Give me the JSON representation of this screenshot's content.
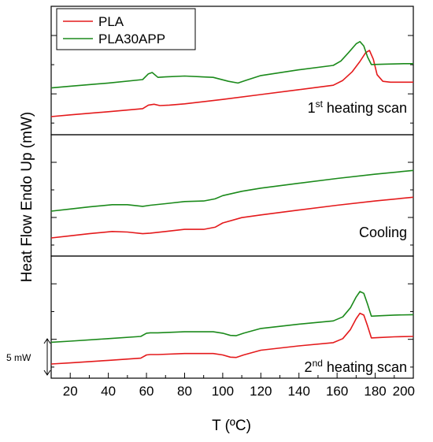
{
  "chart_data": {
    "type": "line",
    "xlabel": "T (ºC)",
    "ylabel": "Heat Flow Endo Up (mW)",
    "xlim": [
      10,
      200
    ],
    "xticks": [
      20,
      40,
      60,
      80,
      100,
      120,
      140,
      160,
      180,
      200
    ],
    "legend": {
      "position": "top-left",
      "entries": [
        {
          "name": "PLA",
          "color": "#e41a1c"
        },
        {
          "name": "PLA30APP",
          "color": "#1b8a1b"
        }
      ]
    },
    "scale_bar": "5 mW",
    "panels": [
      {
        "label": "1",
        "label_sup": "st",
        "label_rest": " heating scan",
        "series": [
          {
            "name": "PLA",
            "color": "#e41a1c",
            "x": [
              10,
              20,
              40,
              58,
              61,
              64,
              67,
              72,
              80,
              100,
              120,
              140,
              158,
              163,
              168,
              172,
              175,
              177,
              179,
              181,
              184,
              188,
              195,
              200
            ],
            "y": [
              0.0,
              0.4,
              1.1,
              1.8,
              2.6,
              2.8,
              2.5,
              2.6,
              2.9,
              3.9,
              5.0,
              6.1,
              7.1,
              8.2,
              10.2,
              12.5,
              14.5,
              15.0,
              13.0,
              9.5,
              8.0,
              7.8,
              7.8,
              7.8
            ]
          },
          {
            "name": "PLA30APP",
            "color": "#1b8a1b",
            "x": [
              10,
              20,
              40,
              58,
              61,
              63,
              66,
              70,
              80,
              95,
              103,
              108,
              112,
              120,
              140,
              158,
              162,
              166,
              170,
              172,
              174,
              176,
              178,
              185,
              195,
              200
            ],
            "y": [
              6.5,
              6.9,
              7.6,
              8.4,
              9.7,
              10.0,
              8.9,
              9.0,
              9.2,
              8.9,
              8.0,
              7.6,
              8.2,
              9.3,
              10.6,
              11.6,
              12.6,
              14.5,
              16.5,
              17.0,
              16.0,
              13.5,
              11.8,
              11.9,
              12.0,
              12.0
            ]
          }
        ]
      },
      {
        "label": "Cooling",
        "label_sup": "",
        "label_rest": "",
        "series": [
          {
            "name": "PLA",
            "color": "#e41a1c",
            "x": [
              10,
              20,
              30,
              42,
              50,
              58,
              62,
              70,
              80,
              90,
              96,
              100,
              110,
              120,
              140,
              160,
              180,
              200
            ],
            "y": [
              0.0,
              0.4,
              0.8,
              1.2,
              1.1,
              0.8,
              0.9,
              1.2,
              1.6,
              1.6,
              2.0,
              2.8,
              3.8,
              4.3,
              5.2,
              6.1,
              6.9,
              7.6
            ]
          },
          {
            "name": "PLA30APP",
            "color": "#1b8a1b",
            "x": [
              10,
              20,
              30,
              42,
              50,
              58,
              62,
              70,
              80,
              90,
              96,
              100,
              110,
              120,
              140,
              160,
              180,
              200
            ],
            "y": [
              5.0,
              5.4,
              5.8,
              6.2,
              6.2,
              5.9,
              6.1,
              6.4,
              6.8,
              6.9,
              7.3,
              7.9,
              8.7,
              9.3,
              10.2,
              11.1,
              11.9,
              12.6
            ]
          }
        ]
      },
      {
        "label": "2",
        "label_sup": "nd",
        "label_rest": " heating scan",
        "series": [
          {
            "name": "PLA",
            "color": "#e41a1c",
            "x": [
              10,
              20,
              40,
              57,
              60,
              62,
              66,
              80,
              95,
              100,
              104,
              107,
              111,
              120,
              140,
              158,
              163,
              167,
              170,
              172,
              174,
              176,
              178,
              182,
              190,
              200
            ],
            "y": [
              0.0,
              0.3,
              1.0,
              1.6,
              2.5,
              2.6,
              2.6,
              2.9,
              2.9,
              2.5,
              1.9,
              1.8,
              2.5,
              3.8,
              5.0,
              5.9,
              7.0,
              9.5,
              12.5,
              14.0,
              13.5,
              10.5,
              7.2,
              7.3,
              7.5,
              7.6
            ]
          },
          {
            "name": "PLA30APP",
            "color": "#1b8a1b",
            "x": [
              10,
              20,
              40,
              57,
              60,
              62,
              66,
              80,
              95,
              100,
              104,
              107,
              111,
              120,
              140,
              158,
              163,
              167,
              170,
              172,
              174,
              176,
              178,
              182,
              190,
              200
            ],
            "y": [
              6.0,
              6.3,
              7.0,
              7.6,
              8.5,
              8.6,
              8.6,
              8.9,
              8.9,
              8.5,
              7.9,
              7.8,
              8.5,
              9.8,
              11.0,
              11.9,
              13.0,
              15.5,
              18.5,
              20.0,
              19.5,
              16.5,
              13.2,
              13.3,
              13.5,
              13.6
            ]
          }
        ]
      }
    ]
  }
}
